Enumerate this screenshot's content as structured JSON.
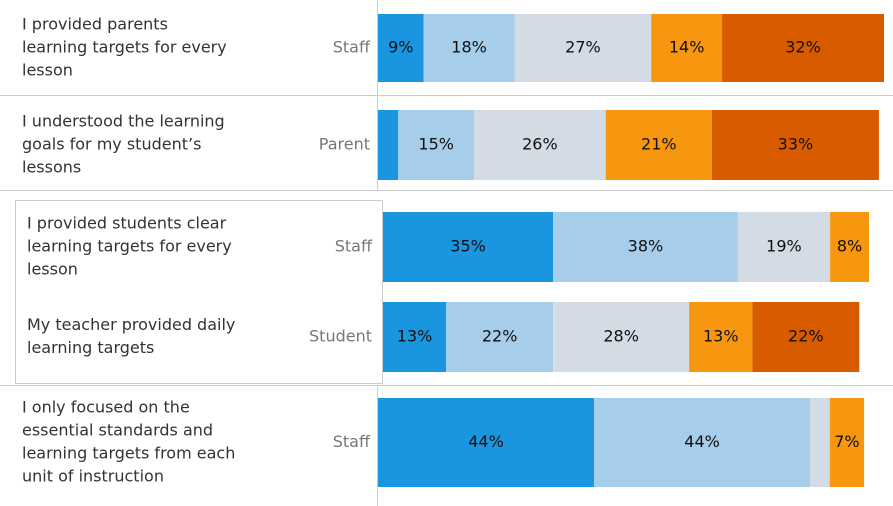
{
  "chart_data": {
    "type": "bar",
    "orientation": "horizontal",
    "stacked": true,
    "categories": [
      [
        "I provided parents",
        "learning targets for every",
        "lesson"
      ],
      [
        "I understood the learning",
        "goals for my student’s",
        "lessons"
      ],
      [
        "I provided students clear",
        "learning targets for every",
        "lesson"
      ],
      [
        "My teacher provided daily",
        "learning targets"
      ],
      [
        "I only focused on the",
        "essential standards and",
        "learning targets from each",
        "unit of instruction"
      ]
    ],
    "groups": [
      "Staff",
      "Parent",
      "Staff",
      "Student",
      "Staff"
    ],
    "xlim": [
      0,
      100
    ],
    "series": [
      {
        "color": "#1a96e0",
        "values": [
          9,
          4,
          35,
          13,
          44
        ],
        "value_labels": [
          "9%",
          null,
          "35%",
          "13%",
          "44%"
        ]
      },
      {
        "color": "#a6cdea",
        "values": [
          18,
          15,
          38,
          22,
          44
        ],
        "value_labels": [
          "18%",
          "15%",
          "38%",
          "22%",
          "44%"
        ]
      },
      {
        "color": "#d3dbe5",
        "values": [
          27,
          26,
          19,
          28,
          4
        ],
        "value_labels": [
          "27%",
          "26%",
          "19%",
          "28%",
          null
        ]
      },
      {
        "color": "#f7970f",
        "values": [
          14,
          21,
          8,
          13,
          7
        ],
        "value_labels": [
          "14%",
          "21%",
          "8%",
          "13%",
          "7%"
        ]
      },
      {
        "color": "#d95b00",
        "values": [
          32,
          33,
          0,
          22,
          0
        ],
        "value_labels": [
          "32%",
          "33%",
          null,
          "22%",
          null
        ]
      }
    ]
  }
}
